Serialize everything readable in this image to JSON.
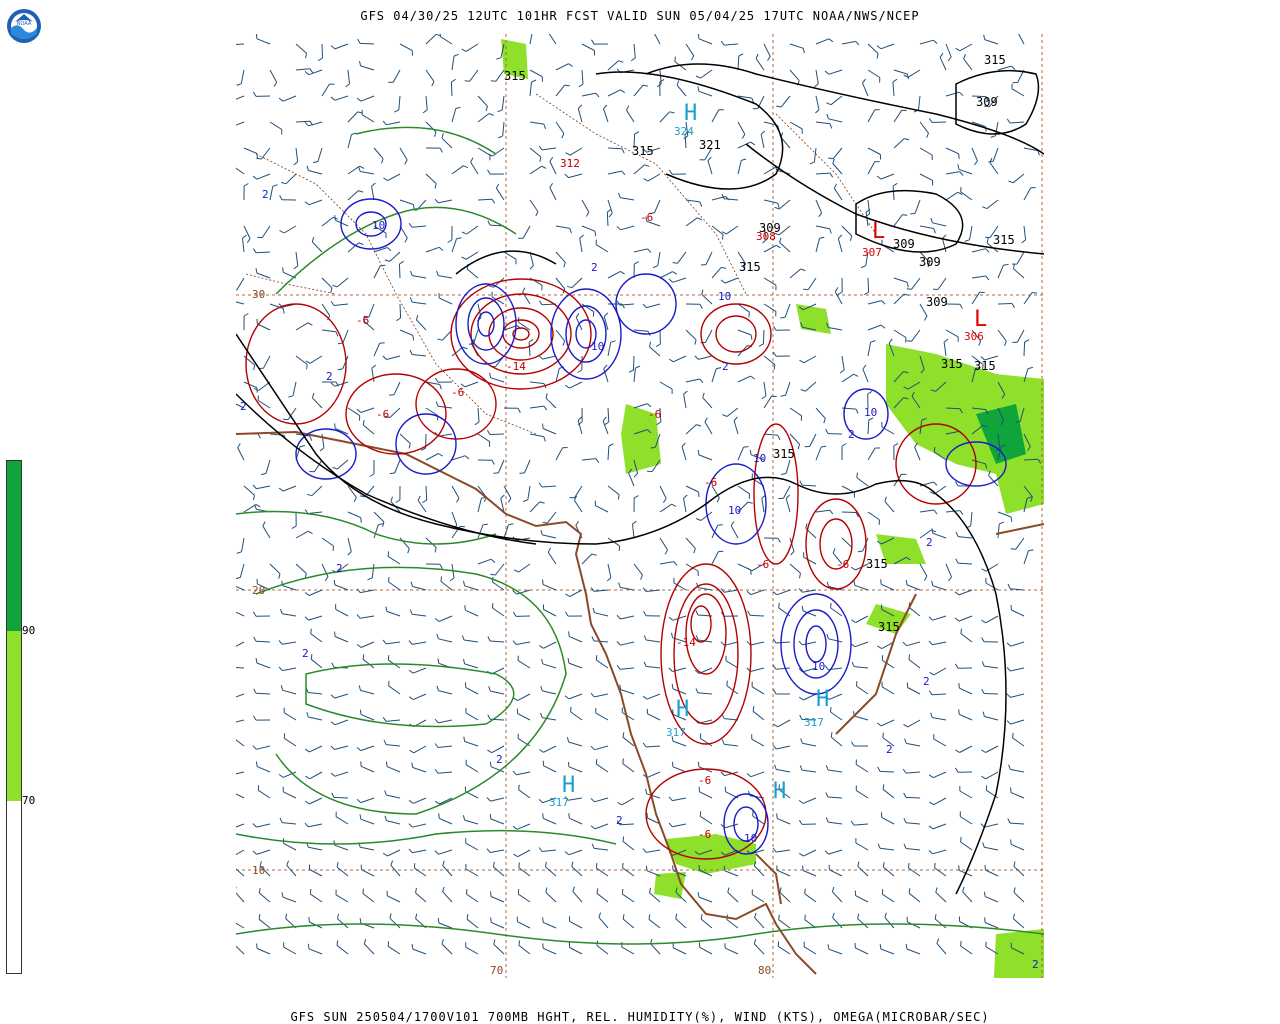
{
  "header": {
    "title": "GFS 04/30/25 12UTC 101HR FCST VALID SUN 05/04/25 17UTC NOAA/NWS/NCEP",
    "footer": "GFS SUN 250504/1700V101 700MB HGHT, REL. HUMIDITY(%), WIND (KTS), OMEGA(MICROBAR/SEC)"
  },
  "logo": {
    "icon": "noaa-logo-icon",
    "text": "NOAA"
  },
  "colorbar": {
    "labels": [
      "90",
      "70"
    ],
    "colors": {
      "dark": "#0fa53a",
      "light": "#8ee02a",
      "white": "#ffffff"
    }
  },
  "map": {
    "grid": {
      "lon_labels": [
        "70",
        "80"
      ],
      "lat_labels": [
        "30",
        "20",
        "10"
      ]
    },
    "height_labels": [
      "315",
      "315",
      "321",
      "315",
      "309",
      "309",
      "309",
      "309",
      "315",
      "309",
      "315",
      "315",
      "315",
      "315",
      "315",
      "315"
    ],
    "high_centers": [
      {
        "letter": "H",
        "value": "324"
      },
      {
        "letter": "H",
        "value": "317"
      },
      {
        "letter": "H",
        "value": "317"
      },
      {
        "letter": "H",
        "value": "317"
      },
      {
        "letter": "H",
        "value": ""
      }
    ],
    "low_centers": [
      {
        "letter": "L",
        "value": "307"
      },
      {
        "letter": "L",
        "value": "306"
      }
    ],
    "red_labels": [
      "312",
      "308",
      "-6",
      "-6",
      "-14",
      "-6",
      "-6",
      "-6",
      "-6",
      "-6",
      "-6",
      "-14",
      "-6",
      "-6"
    ],
    "blue_labels": [
      "10",
      "2",
      "2",
      "10",
      "10",
      "2",
      "2",
      "10",
      "10",
      "2",
      "10",
      "2",
      "2",
      "2",
      "10",
      "2",
      "2",
      "2",
      "2",
      "2",
      "10",
      "2"
    ],
    "colors": {
      "height_contour": "#000000",
      "omega_up": "#b30000",
      "omega_down": "#1a1ac8",
      "rh_contour": "#2a8a2a",
      "wind_barb": "#1f4f7a",
      "coastline": "#8b4a26",
      "grid_line": "#b06a40",
      "high_label": "#1aa0d0",
      "low_label": "#e00000"
    }
  }
}
